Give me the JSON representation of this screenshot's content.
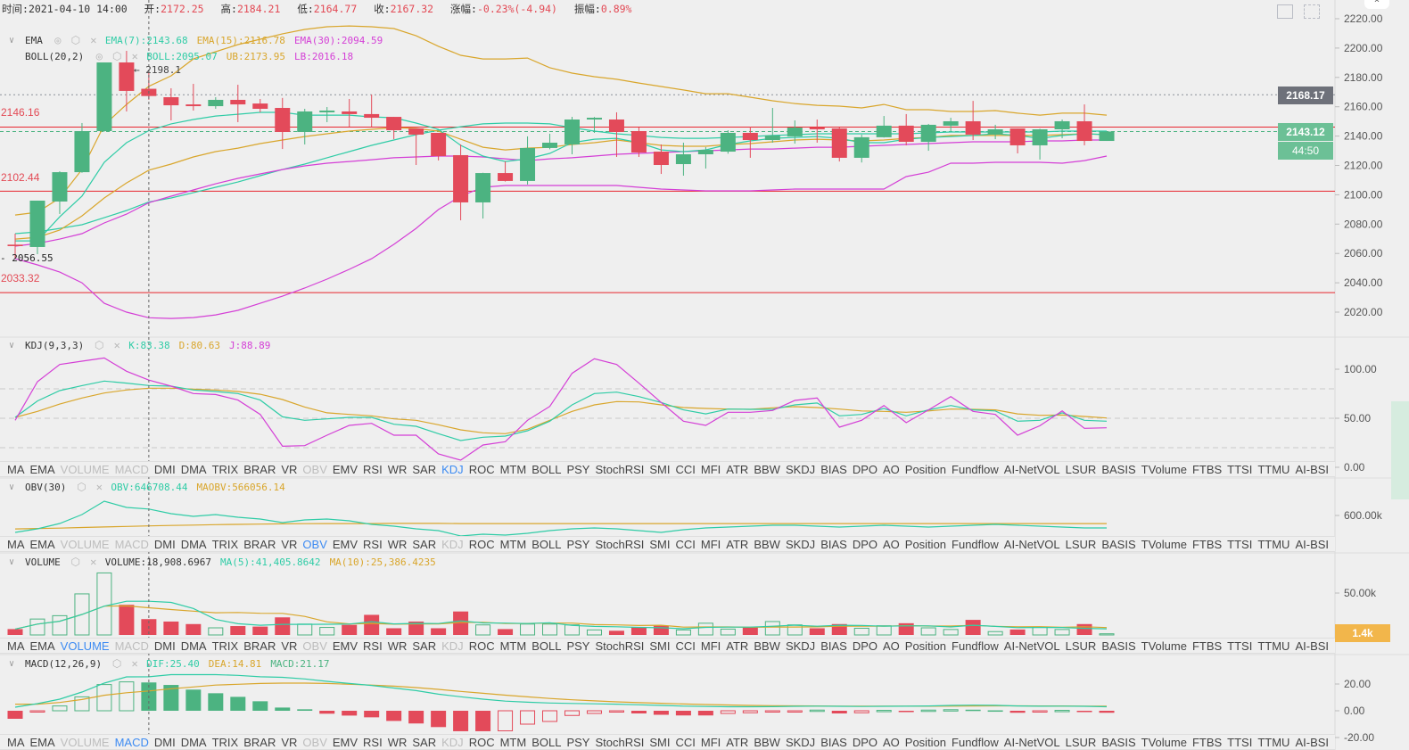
{
  "header": {
    "time_label": "时间:",
    "time": "2021-04-10 14:00",
    "open_label": "开:",
    "open": "2172.25",
    "high_label": "高:",
    "high": "2184.21",
    "low_label": "低:",
    "low": "2164.77",
    "close_label": "收:",
    "close": "2167.32",
    "change_label": "涨幅:",
    "change": "-0.23%(-4.94)",
    "amplitude_label": "振幅:",
    "amplitude": "0.89%"
  },
  "legends": {
    "ema": {
      "name": "EMA",
      "values": [
        "EMA(7):2143.68",
        "EMA(15):2116.78",
        "EMA(30):2094.59"
      ]
    },
    "boll": {
      "name": "BOLL(20,2)",
      "values": [
        "BOLL:2095.07",
        "UB:2173.95",
        "LB:2016.18"
      ]
    },
    "kdj": {
      "name": "KDJ(9,3,3)",
      "values": [
        "K:83.38",
        "D:80.63",
        "J:88.89"
      ]
    },
    "obv": {
      "name": "OBV(30)",
      "values": [
        "OBV:646708.44",
        "MAOBV:566056.14"
      ]
    },
    "volume": {
      "name": "VOLUME",
      "values": [
        "VOLUME:18,908.6967",
        "MA(5):41,405.8642",
        "MA(10):25,386.4235"
      ]
    },
    "macd": {
      "name": "MACD(12,26,9)",
      "values": [
        "DIF:25.40",
        "DEA:14.81",
        "MACD:21.17"
      ]
    }
  },
  "colors": {
    "up": "#4cb381",
    "down": "#e34a5a",
    "teal": "#2fcca6",
    "gold": "#d9a62c",
    "magenta": "#d43fd6",
    "level_line": "#e8262e",
    "last_price_bg": "#6cc096",
    "high_price_bg": "#6e717a",
    "volume_tag_bg": "#f2b64b"
  },
  "price_axis": {
    "ticks": [
      "2220.00",
      "2200.00",
      "2180.00",
      "2160.00",
      "2140.00",
      "2120.00",
      "2100.00",
      "2080.00",
      "2060.00",
      "2040.00",
      "2020.00"
    ]
  },
  "price_tags": {
    "high_line": "2168.17",
    "last": "2143.12",
    "countdown": "44:50"
  },
  "annotations": {
    "max": "2198.1",
    "min": "2056.55",
    "levels": [
      "2146.16",
      "2102.44",
      "2033.32"
    ]
  },
  "kdj_axis": {
    "ticks": [
      "100.00",
      "50.00",
      "0.00"
    ],
    "dashed": [
      80,
      50,
      20
    ]
  },
  "obv_axis": {
    "ticks": [
      "600.00k"
    ]
  },
  "volume_axis": {
    "ticks": [
      "50.00k"
    ],
    "current_tag": "1.4k"
  },
  "macd_axis": {
    "ticks": [
      "20.00",
      "0.00",
      "-20.00"
    ]
  },
  "icons": {
    "top_right": [
      "calendar-icon",
      "fullscreen-icon"
    ],
    "legend": [
      "eye-icon",
      "gear-icon",
      "close-icon"
    ]
  },
  "indicator_tabs": [
    "MA",
    "EMA",
    "VOLUME",
    "MACD",
    "DMI",
    "DMA",
    "TRIX",
    "BRAR",
    "VR",
    "OBV",
    "EMV",
    "RSI",
    "WR",
    "SAR",
    "KDJ",
    "ROC",
    "MTM",
    "BOLL",
    "PSY",
    "StochRSI",
    "SMI",
    "CCI",
    "MFI",
    "ATR",
    "BBW",
    "SKDJ",
    "BIAS",
    "DPO",
    "AO",
    "Position",
    "Fundflow",
    "AI-NetVOL",
    "LSUR",
    "BASIS",
    "TVolume",
    "FTBS",
    "TTSI",
    "TTMU",
    "AI-BSI"
  ],
  "tab_rows": [
    {
      "active": "KDJ",
      "disabled": [
        "VOLUME",
        "MACD",
        "OBV"
      ]
    },
    {
      "active": "OBV",
      "disabled": [
        "VOLUME",
        "MACD",
        "KDJ"
      ]
    },
    {
      "active": "VOLUME",
      "disabled": [
        "MACD",
        "OBV",
        "KDJ"
      ]
    },
    {
      "active": "MACD",
      "disabled": [
        "VOLUME",
        "OBV",
        "KDJ"
      ]
    }
  ],
  "chart_data": {
    "type": "candlestick",
    "crosshair_index": 6,
    "candle_fields": [
      "open",
      "high",
      "low",
      "close"
    ],
    "candles": [
      [
        2066,
        2073.5,
        2056.55,
        2065
      ],
      [
        2064.4,
        2096,
        2059.5,
        2096
      ],
      [
        2095.4,
        2116,
        2086.9,
        2115.4
      ],
      [
        2115.4,
        2148.9,
        2115,
        2143.4
      ],
      [
        2143.4,
        2190.2,
        2143,
        2190.2
      ],
      [
        2190.2,
        2198.1,
        2156.8,
        2170.8
      ],
      [
        2172.25,
        2184.21,
        2164.77,
        2167.32
      ],
      [
        2166.5,
        2172.6,
        2150.7,
        2161
      ],
      [
        2161.6,
        2175.6,
        2157.4,
        2160.4
      ],
      [
        2160.4,
        2166.5,
        2158.6,
        2164.7
      ],
      [
        2164.7,
        2175,
        2149.5,
        2161.6
      ],
      [
        2162.2,
        2165.3,
        2156.2,
        2158.6
      ],
      [
        2159.2,
        2166,
        2131.2,
        2142.8
      ],
      [
        2142.8,
        2158.6,
        2134.3,
        2156.8
      ],
      [
        2156.2,
        2159.8,
        2149.5,
        2157.4
      ],
      [
        2156.8,
        2165.3,
        2146.4,
        2155
      ],
      [
        2155,
        2168.3,
        2146.4,
        2152.5
      ],
      [
        2153.1,
        2153.1,
        2137.9,
        2144
      ],
      [
        2145.2,
        2145.2,
        2120.3,
        2141
      ],
      [
        2142.2,
        2142.2,
        2123.4,
        2126.4
      ],
      [
        2127,
        2134.3,
        2082.6,
        2094.8
      ],
      [
        2094.8,
        2115,
        2083.8,
        2114.8
      ],
      [
        2114.8,
        2122.7,
        2109,
        2109.4
      ],
      [
        2109.4,
        2139.8,
        2107,
        2131.9
      ],
      [
        2131.9,
        2141.6,
        2131,
        2135.5
      ],
      [
        2134.3,
        2153.1,
        2127.6,
        2151.3
      ],
      [
        2151.3,
        2153,
        2142.2,
        2152.5
      ],
      [
        2151.3,
        2156.2,
        2125.8,
        2142.8
      ],
      [
        2143.4,
        2145.8,
        2125.8,
        2128.8
      ],
      [
        2129.4,
        2134.3,
        2114.2,
        2120.3
      ],
      [
        2120.9,
        2135.5,
        2113,
        2127.6
      ],
      [
        2127.6,
        2132.5,
        2117.9,
        2130.6
      ],
      [
        2129.4,
        2144,
        2128,
        2142.2
      ],
      [
        2142.2,
        2146.4,
        2125.2,
        2137.3
      ],
      [
        2137.3,
        2159.2,
        2135.5,
        2140.4
      ],
      [
        2139.8,
        2150.7,
        2134.9,
        2145.8
      ],
      [
        2145.8,
        2151.3,
        2135.5,
        2144.6
      ],
      [
        2145.2,
        2145.8,
        2122.7,
        2125.2
      ],
      [
        2125.2,
        2141,
        2122,
        2139.2
      ],
      [
        2139.2,
        2153.7,
        2139,
        2147.1
      ],
      [
        2147.1,
        2155,
        2133.7,
        2136.1
      ],
      [
        2136.1,
        2148.3,
        2130,
        2147.7
      ],
      [
        2147.1,
        2152.5,
        2143.4,
        2150.1
      ],
      [
        2150.1,
        2164,
        2137.3,
        2141
      ],
      [
        2141,
        2147.7,
        2137.9,
        2144.6
      ],
      [
        2145.2,
        2145.2,
        2128.2,
        2133.7
      ],
      [
        2133.7,
        2145,
        2124,
        2144.6
      ],
      [
        2144.6,
        2151.3,
        2138.5,
        2150.1
      ],
      [
        2150.1,
        2161.6,
        2133.7,
        2136.7
      ],
      [
        2136.7,
        2143.12,
        2136.7,
        2143.12
      ]
    ],
    "price_range": [
      2020,
      2220
    ],
    "overlays": {
      "ema7": [
        2068.6,
        2068.6,
        2085.0,
        2099.0,
        2122.1,
        2135.5,
        2143.68,
        2148.3,
        2151.3,
        2153.7,
        2154.9,
        2156.2,
        2156.2,
        2154.3,
        2154.3,
        2154.3,
        2153.1,
        2152.5,
        2148.9,
        2144.6,
        2133.7,
        2126.4,
        2122.7,
        2124.5,
        2128.2,
        2135.5,
        2137.9,
        2138.5,
        2135.5,
        2130.6,
        2129.4,
        2130.6,
        2134.3,
        2136.7,
        2138.5,
        2139.1,
        2139.7,
        2138.5,
        2135.5,
        2135.5,
        2137.9,
        2139.1,
        2139.7,
        2140.4,
        2141.6,
        2140.4,
        2138.5,
        2140.4,
        2141.6,
        2141.0
      ],
      "ema15": [
        2069.8,
        2071.0,
        2075.9,
        2085.6,
        2097.8,
        2108.1,
        2116.78,
        2120.9,
        2125.8,
        2129.4,
        2131.8,
        2134.9,
        2137.3,
        2139.7,
        2141.6,
        2143.4,
        2144.6,
        2145.8,
        2145.2,
        2143.4,
        2137.9,
        2132.4,
        2130.6,
        2131.8,
        2132.4,
        2134.3,
        2135.5,
        2137.3,
        2135.5,
        2133.7,
        2133.1,
        2133.1,
        2134.3,
        2134.9,
        2136.1,
        2137.3,
        2137.9,
        2137.3,
        2136.7,
        2137.3,
        2138.5,
        2139.1,
        2140.4,
        2140.4,
        2140.4,
        2140.4,
        2140.4,
        2141.0,
        2141.6,
        2141.0
      ],
      "ema30": [
        2065.0,
        2066.8,
        2069.8,
        2073.5,
        2080.8,
        2086.8,
        2094.59,
        2099.0,
        2103.3,
        2107.5,
        2111.2,
        2114.2,
        2117.2,
        2119.7,
        2121.5,
        2122.7,
        2123.9,
        2125.2,
        2125.8,
        2126.4,
        2126.4,
        2125.8,
        2124.5,
        2123.3,
        2124.5,
        2125.2,
        2126.4,
        2127.6,
        2128.2,
        2128.8,
        2129.4,
        2130.0,
        2130.6,
        2131.2,
        2131.2,
        2131.8,
        2132.4,
        2132.4,
        2133.1,
        2133.7,
        2134.3,
        2134.9,
        2135.5,
        2136.1,
        2136.1,
        2136.1,
        2136.7,
        2136.7,
        2137.3,
        2137.3
      ],
      "boll_mid": [
        2073.5,
        2074.7,
        2077.1,
        2079.6,
        2084.4,
        2089.3,
        2095.07,
        2097.8,
        2101.4,
        2105.1,
        2108.7,
        2113.0,
        2117.2,
        2120.9,
        2125.2,
        2129.4,
        2133.7,
        2137.3,
        2141.0,
        2144.0,
        2146.4,
        2148.3,
        2148.9,
        2148.9,
        2148.3,
        2145.8,
        2143.4,
        2141.6,
        2140.4,
        2139.1,
        2138.5,
        2138.5,
        2139.1,
        2139.7,
        2140.4,
        2141.0,
        2141.6,
        2141.6,
        2141.6,
        2141.6,
        2141.6,
        2142.2,
        2142.8,
        2142.8,
        2142.8,
        2142.8,
        2142.8,
        2143.4,
        2143.4,
        2143.4
      ],
      "boll_ub": [
        2086.2,
        2088.1,
        2097.8,
        2117.2,
        2147.6,
        2161.6,
        2173.95,
        2181.1,
        2192.6,
        2197.5,
        2202.4,
        2206.0,
        2209.7,
        2212.7,
        2214.5,
        2215.1,
        2214.5,
        2213.3,
        2208.4,
        2201.2,
        2195.1,
        2192.6,
        2192.6,
        2193.2,
        2186.6,
        2182.9,
        2180.5,
        2178.7,
        2176.2,
        2173.8,
        2171.4,
        2168.9,
        2168.9,
        2166.5,
        2164.1,
        2162.2,
        2161.0,
        2160.4,
        2159.2,
        2161.6,
        2158.0,
        2158.0,
        2156.8,
        2156.8,
        2157.4,
        2155.6,
        2154.3,
        2155.6,
        2155.6,
        2154.3
      ],
      "boll_lb": [
        2056.4,
        2052.2,
        2047.3,
        2040.0,
        2026.0,
        2020.0,
        2016.18,
        2015.7,
        2016.3,
        2018.1,
        2021.2,
        2026.0,
        2030.9,
        2036.4,
        2042.5,
        2049.2,
        2056.4,
        2066.2,
        2077.1,
        2089.9,
        2099.0,
        2105.1,
        2106.3,
        2106.3,
        2106.3,
        2106.3,
        2106.3,
        2106.3,
        2105.1,
        2103.9,
        2103.3,
        2102.7,
        2102.7,
        2102.7,
        2103.3,
        2103.9,
        2103.9,
        2103.9,
        2103.9,
        2103.9,
        2112.4,
        2115.4,
        2121.5,
        2121.5,
        2122.1,
        2122.1,
        2122.1,
        2121.5,
        2123.3,
        2126.4
      ]
    },
    "kdj": {
      "range": [
        0,
        100
      ],
      "k": [
        50.9,
        67.6,
        78.2,
        83.3,
        87.9,
        85.8,
        83.38,
        82.7,
        78.8,
        77.3,
        75.2,
        68.5,
        51.5,
        47.9,
        49.4,
        50.9,
        50.9,
        43.9,
        41.8,
        34.3,
        27.3,
        30.6,
        31.8,
        37.3,
        47.0,
        63.6,
        75.2,
        76.6,
        72.1,
        66.1,
        58.5,
        54.5,
        59.4,
        59.1,
        59.1,
        63.6,
        65.5,
        52.5,
        53.9,
        60.0,
        52.5,
        58.5,
        63.0,
        58.5,
        57.5,
        47.0,
        47.9,
        55.5,
        47.9,
        47.0
      ],
      "d": [
        50.9,
        57.0,
        64.5,
        70.6,
        75.7,
        78.8,
        80.63,
        80.6,
        79.7,
        78.8,
        77.3,
        74.5,
        69.1,
        61.5,
        55.5,
        53.9,
        52.5,
        49.4,
        47.9,
        43.4,
        38.2,
        35.2,
        34.3,
        38.8,
        47.9,
        57.0,
        63.6,
        67.0,
        66.6,
        63.6,
        60.9,
        60.0,
        59.4,
        59.1,
        60.6,
        61.8,
        60.9,
        59.4,
        57.5,
        57.0,
        56.1,
        57.5,
        59.4,
        59.1,
        58.5,
        54.5,
        53.0,
        53.3,
        51.8,
        50.3
      ],
      "j": [
        47.9,
        87.3,
        104.8,
        108.2,
        111.5,
        97.9,
        88.89,
        82.7,
        75.2,
        74.2,
        68.5,
        53.9,
        21.5,
        22.1,
        32.7,
        42.7,
        44.8,
        32.7,
        32.7,
        13.6,
        7.3,
        22.7,
        26.1,
        47.9,
        62.1,
        95.8,
        110.6,
        104.8,
        85.8,
        66.1,
        47.0,
        42.7,
        56.1,
        56.1,
        57.9,
        68.2,
        70.6,
        40.9,
        47.9,
        63.0,
        45.5,
        58.5,
        72.1,
        57.0,
        53.9,
        32.7,
        42.4,
        57.5,
        39.7,
        40.3
      ]
    },
    "obv": {
      "unit": "k",
      "obv": [
        476.5,
        502.5,
        541.5,
        606.5,
        704,
        658.5,
        646.7,
        613,
        593.5,
        606.5,
        587,
        574,
        548,
        567.5,
        574,
        561,
        535,
        522,
        502.5,
        489.5,
        450.5,
        463.5,
        457,
        470,
        489.5,
        502.5,
        509,
        502.5,
        489.5,
        476.5,
        496,
        509,
        515.5,
        522,
        528.5,
        528.5,
        522,
        515.5,
        522,
        528.5,
        522,
        515.5,
        522,
        528.5,
        535,
        528.5,
        522,
        515.5,
        509,
        509
      ],
      "maobv": [
        502,
        505,
        508,
        512,
        516,
        520,
        524,
        527,
        530,
        533,
        535,
        537,
        539,
        540,
        541,
        541,
        541,
        542,
        542,
        542,
        541,
        541,
        541,
        541,
        541,
        541,
        541,
        541,
        541,
        541,
        541,
        541,
        541,
        541,
        541,
        541,
        541,
        541,
        541,
        541,
        541,
        541,
        541,
        541,
        541,
        541,
        541,
        541,
        541,
        541
      ]
    },
    "volume": {
      "unit": "k",
      "values": [
        7,
        19,
        23,
        49,
        74,
        36,
        18.9,
        16,
        13,
        8.5,
        10.6,
        10,
        21,
        13,
        9,
        12,
        24,
        8,
        16,
        8,
        28,
        12,
        7,
        13,
        13,
        12,
        6,
        5,
        9,
        11,
        6,
        14,
        7,
        9,
        16,
        12,
        8,
        13,
        8,
        11,
        14,
        8.5,
        6.5,
        18,
        4,
        6.5,
        9.5,
        6.5,
        13,
        1.4
      ]
    },
    "macd": {
      "dif": [
        2.7,
        5.3,
        8.7,
        14,
        20.7,
        25.3,
        25.4,
        27,
        27,
        27,
        26.5,
        25.4,
        25,
        23.8,
        22,
        20.4,
        18.9,
        17,
        15.1,
        12.4,
        10.5,
        8.7,
        7.2,
        6.4,
        5.8,
        5.5,
        5.2,
        4.9,
        4.5,
        4.0,
        3.5,
        3.2,
        3.0,
        3.0,
        3.1,
        3.3,
        3.5,
        3.3,
        3.2,
        3.3,
        3.4,
        3.6,
        4.0,
        4.2,
        4.1,
        3.6,
        3.4,
        3.5,
        3.3,
        3.0
      ],
      "dea": [
        4.9,
        4.9,
        6.2,
        8.4,
        11.6,
        13.5,
        14.81,
        16.5,
        17.8,
        19.2,
        19.8,
        20.4,
        20.7,
        20.7,
        20.4,
        19.8,
        19.2,
        18.4,
        17.3,
        16.0,
        14.5,
        13.1,
        11.7,
        10.4,
        9.2,
        8.2,
        7.4,
        6.7,
        6.1,
        5.6,
        5.1,
        4.7,
        4.3,
        4.0,
        3.8,
        3.7,
        3.6,
        3.5,
        3.4,
        3.4,
        3.4,
        3.4,
        3.5,
        3.6,
        3.7,
        3.7,
        3.6,
        3.6,
        3.5,
        3.4
      ],
      "hist": [
        -6,
        -1,
        3.6,
        10.4,
        19.6,
        21.6,
        21.17,
        19.3,
        15.8,
        13.1,
        10.4,
        7.1,
        2.4,
        1.1,
        -2.2,
        -3.6,
        -4.9,
        -7.6,
        -9.5,
        -12.2,
        -15.3,
        -15.3,
        -15,
        -10,
        -8,
        -3.5,
        -2,
        -1,
        -2,
        -3,
        -3.5,
        -3.5,
        -2,
        -1.5,
        -1,
        -0.5,
        0.5,
        -2,
        -1.5,
        0.3,
        -1,
        0.5,
        0.8,
        0.8,
        0.3,
        -1.5,
        -1,
        0.3,
        -1,
        -1.5
      ]
    }
  }
}
